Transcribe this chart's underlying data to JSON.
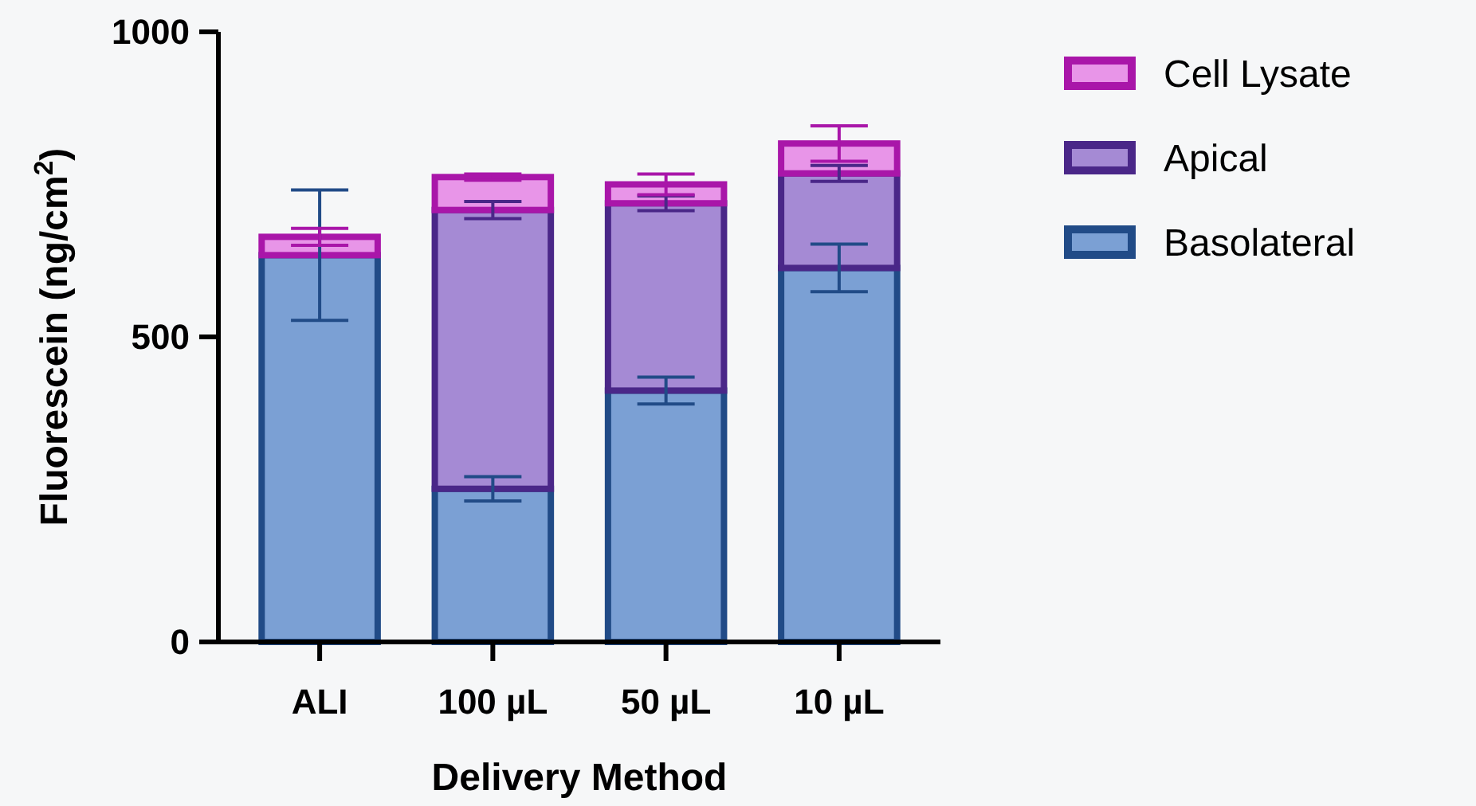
{
  "chart_data": {
    "type": "bar",
    "stacked": true,
    "xlabel": "Delivery Method",
    "ylabel": "Fluorescein (ng/cm$^{2}$)",
    "categories": [
      "ALI",
      "100 µL",
      "50 µL",
      "10 µL"
    ],
    "ylim": [
      0,
      1000
    ],
    "yticks": [
      0,
      500,
      1000
    ],
    "grid": false,
    "legend": "right",
    "series": [
      {
        "name": "Basolateral",
        "color": "#7ba0d4",
        "values": [
          634,
          251,
          412,
          613
        ],
        "errors": [
          107,
          20,
          22,
          39
        ]
      },
      {
        "name": "Apical",
        "color": "#a58ad4",
        "values": [
          0,
          457,
          307,
          155
        ],
        "errors": [
          null,
          14,
          12,
          13
        ]
      },
      {
        "name": "Cell Lysate",
        "color": "#e895e8",
        "values": [
          30,
          54,
          31,
          49
        ],
        "errors": [
          14,
          5,
          17,
          29
        ]
      }
    ]
  }
}
